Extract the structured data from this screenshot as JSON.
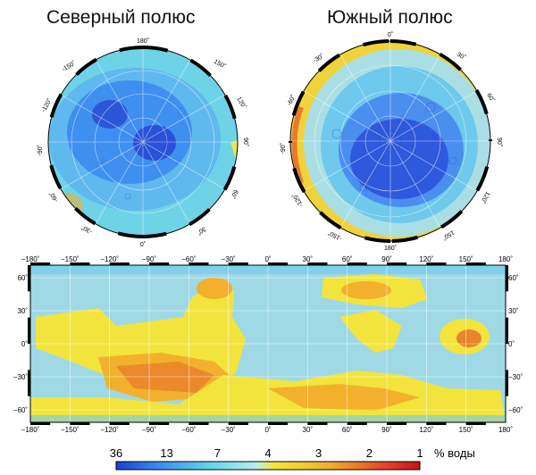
{
  "north_pole": {
    "title": "Северный полюс",
    "top_label": "180˚",
    "bottom_label": "0˚",
    "left_labels": [
      "-150˚",
      "-120˚",
      "-90˚",
      "-60˚",
      "-30˚"
    ],
    "right_labels": [
      "150˚",
      "120˚",
      "90˚",
      "60˚",
      "30˚"
    ]
  },
  "south_pole": {
    "title": "Южный полюс",
    "top_label": "0˚",
    "bottom_label": "180˚",
    "left_labels": [
      "-30˚",
      "-60˚",
      "-90˚",
      "-120˚",
      "-150˚"
    ],
    "right_labels": [
      "30˚",
      "60˚",
      "90˚",
      "120˚",
      "150˚"
    ]
  },
  "world_map": {
    "lon_labels": [
      "−180˚",
      "−150˚",
      "−120˚",
      "−90˚",
      "−60˚",
      "−30˚",
      "0˚",
      "30˚",
      "60˚",
      "90˚",
      "120˚",
      "150˚",
      "180˚"
    ],
    "lat_labels_left": [
      "60˚",
      "30˚",
      "0˚",
      "−30˚",
      "−60˚"
    ],
    "lat_labels_right": [
      "60˚",
      "30˚",
      "0˚",
      "−30˚",
      "−60˚"
    ]
  },
  "legend": {
    "tick_values": [
      "36",
      "13",
      "7",
      "4",
      "3",
      "2",
      "1"
    ],
    "unit": "% воды",
    "colors": [
      "#1a3fd6",
      "#3b8df0",
      "#5fd2e8",
      "#b8eef0",
      "#f5e63c",
      "#f3b02c",
      "#e7532a",
      "#c8121c"
    ]
  }
}
